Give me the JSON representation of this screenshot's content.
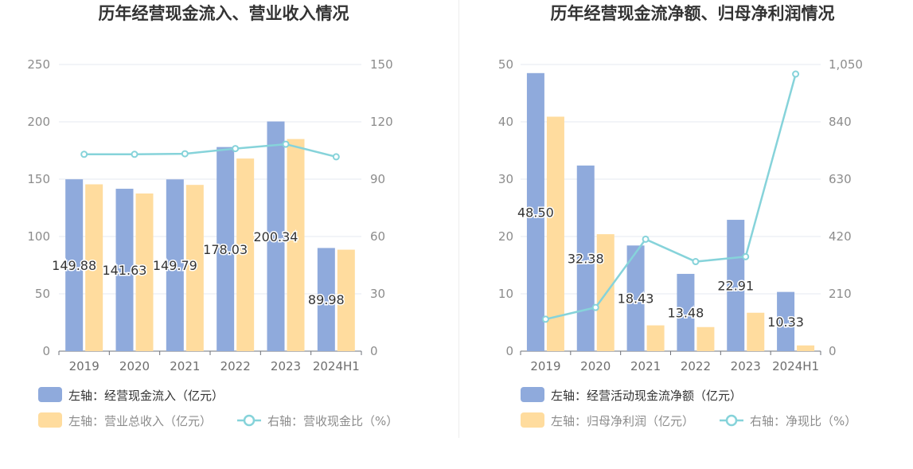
{
  "chart_data": [
    {
      "type": "bar",
      "title": "历年经营现金流入、营业收入情况",
      "categories": [
        "2019",
        "2020",
        "2021",
        "2022",
        "2023",
        "2024H1"
      ],
      "y_left": {
        "ticks": [
          "0",
          "50",
          "100",
          "150",
          "200",
          "250"
        ],
        "min": 0,
        "max": 250
      },
      "y_right": {
        "ticks": [
          "0",
          "30",
          "60",
          "90",
          "120",
          "150"
        ],
        "min": 0,
        "max": 150
      },
      "series": [
        {
          "name": "左轴：经营现金流入（亿元）",
          "type": "bar",
          "axis": "left",
          "color": "#8faadc",
          "values": [
            149.88,
            141.63,
            149.79,
            178.03,
            200.34,
            89.98
          ],
          "labels": [
            "149.88",
            "141.63",
            "149.79",
            "178.03",
            "200.34",
            "89.98"
          ]
        },
        {
          "name": "左轴：营业总收入（亿元）",
          "type": "bar",
          "axis": "left",
          "color": "#ffdc9e",
          "values": [
            145.5,
            137.5,
            145.0,
            168.0,
            185.0,
            88.5
          ]
        },
        {
          "name": "右轴：营收现金比（%）",
          "type": "line",
          "axis": "right",
          "color": "#86d3da",
          "values": [
            103.0,
            103.0,
            103.3,
            106.0,
            108.3,
            101.7
          ]
        }
      ],
      "legend_position": "bottom",
      "grid": true
    },
    {
      "type": "bar",
      "title": "历年经营现金流净额、归母净利润情况",
      "categories": [
        "2019",
        "2020",
        "2021",
        "2022",
        "2023",
        "2024H1"
      ],
      "y_left": {
        "ticks": [
          "0",
          "10",
          "20",
          "30",
          "40",
          "50"
        ],
        "min": 0,
        "max": 50
      },
      "y_right": {
        "ticks": [
          "0",
          "210",
          "420",
          "630",
          "840",
          "1,050"
        ],
        "min": 0,
        "max": 1050
      },
      "series": [
        {
          "name": "左轴：经营活动现金流净额（亿元）",
          "type": "bar",
          "axis": "left",
          "color": "#8faadc",
          "values": [
            48.5,
            32.38,
            18.43,
            13.48,
            22.91,
            10.33
          ],
          "labels": [
            "48.50",
            "32.38",
            "18.43",
            "13.48",
            "22.91",
            "10.33"
          ]
        },
        {
          "name": "左轴：归母净利润（亿元）",
          "type": "bar",
          "axis": "left",
          "color": "#ffdc9e",
          "values": [
            40.9,
            20.4,
            4.5,
            4.2,
            6.7,
            1.0
          ]
        },
        {
          "name": "右轴：净现比（%）",
          "type": "line",
          "axis": "right",
          "color": "#86d3da",
          "values": [
            117,
            160,
            410,
            328,
            346,
            1015
          ]
        }
      ],
      "legend_position": "bottom",
      "grid": true
    }
  ]
}
